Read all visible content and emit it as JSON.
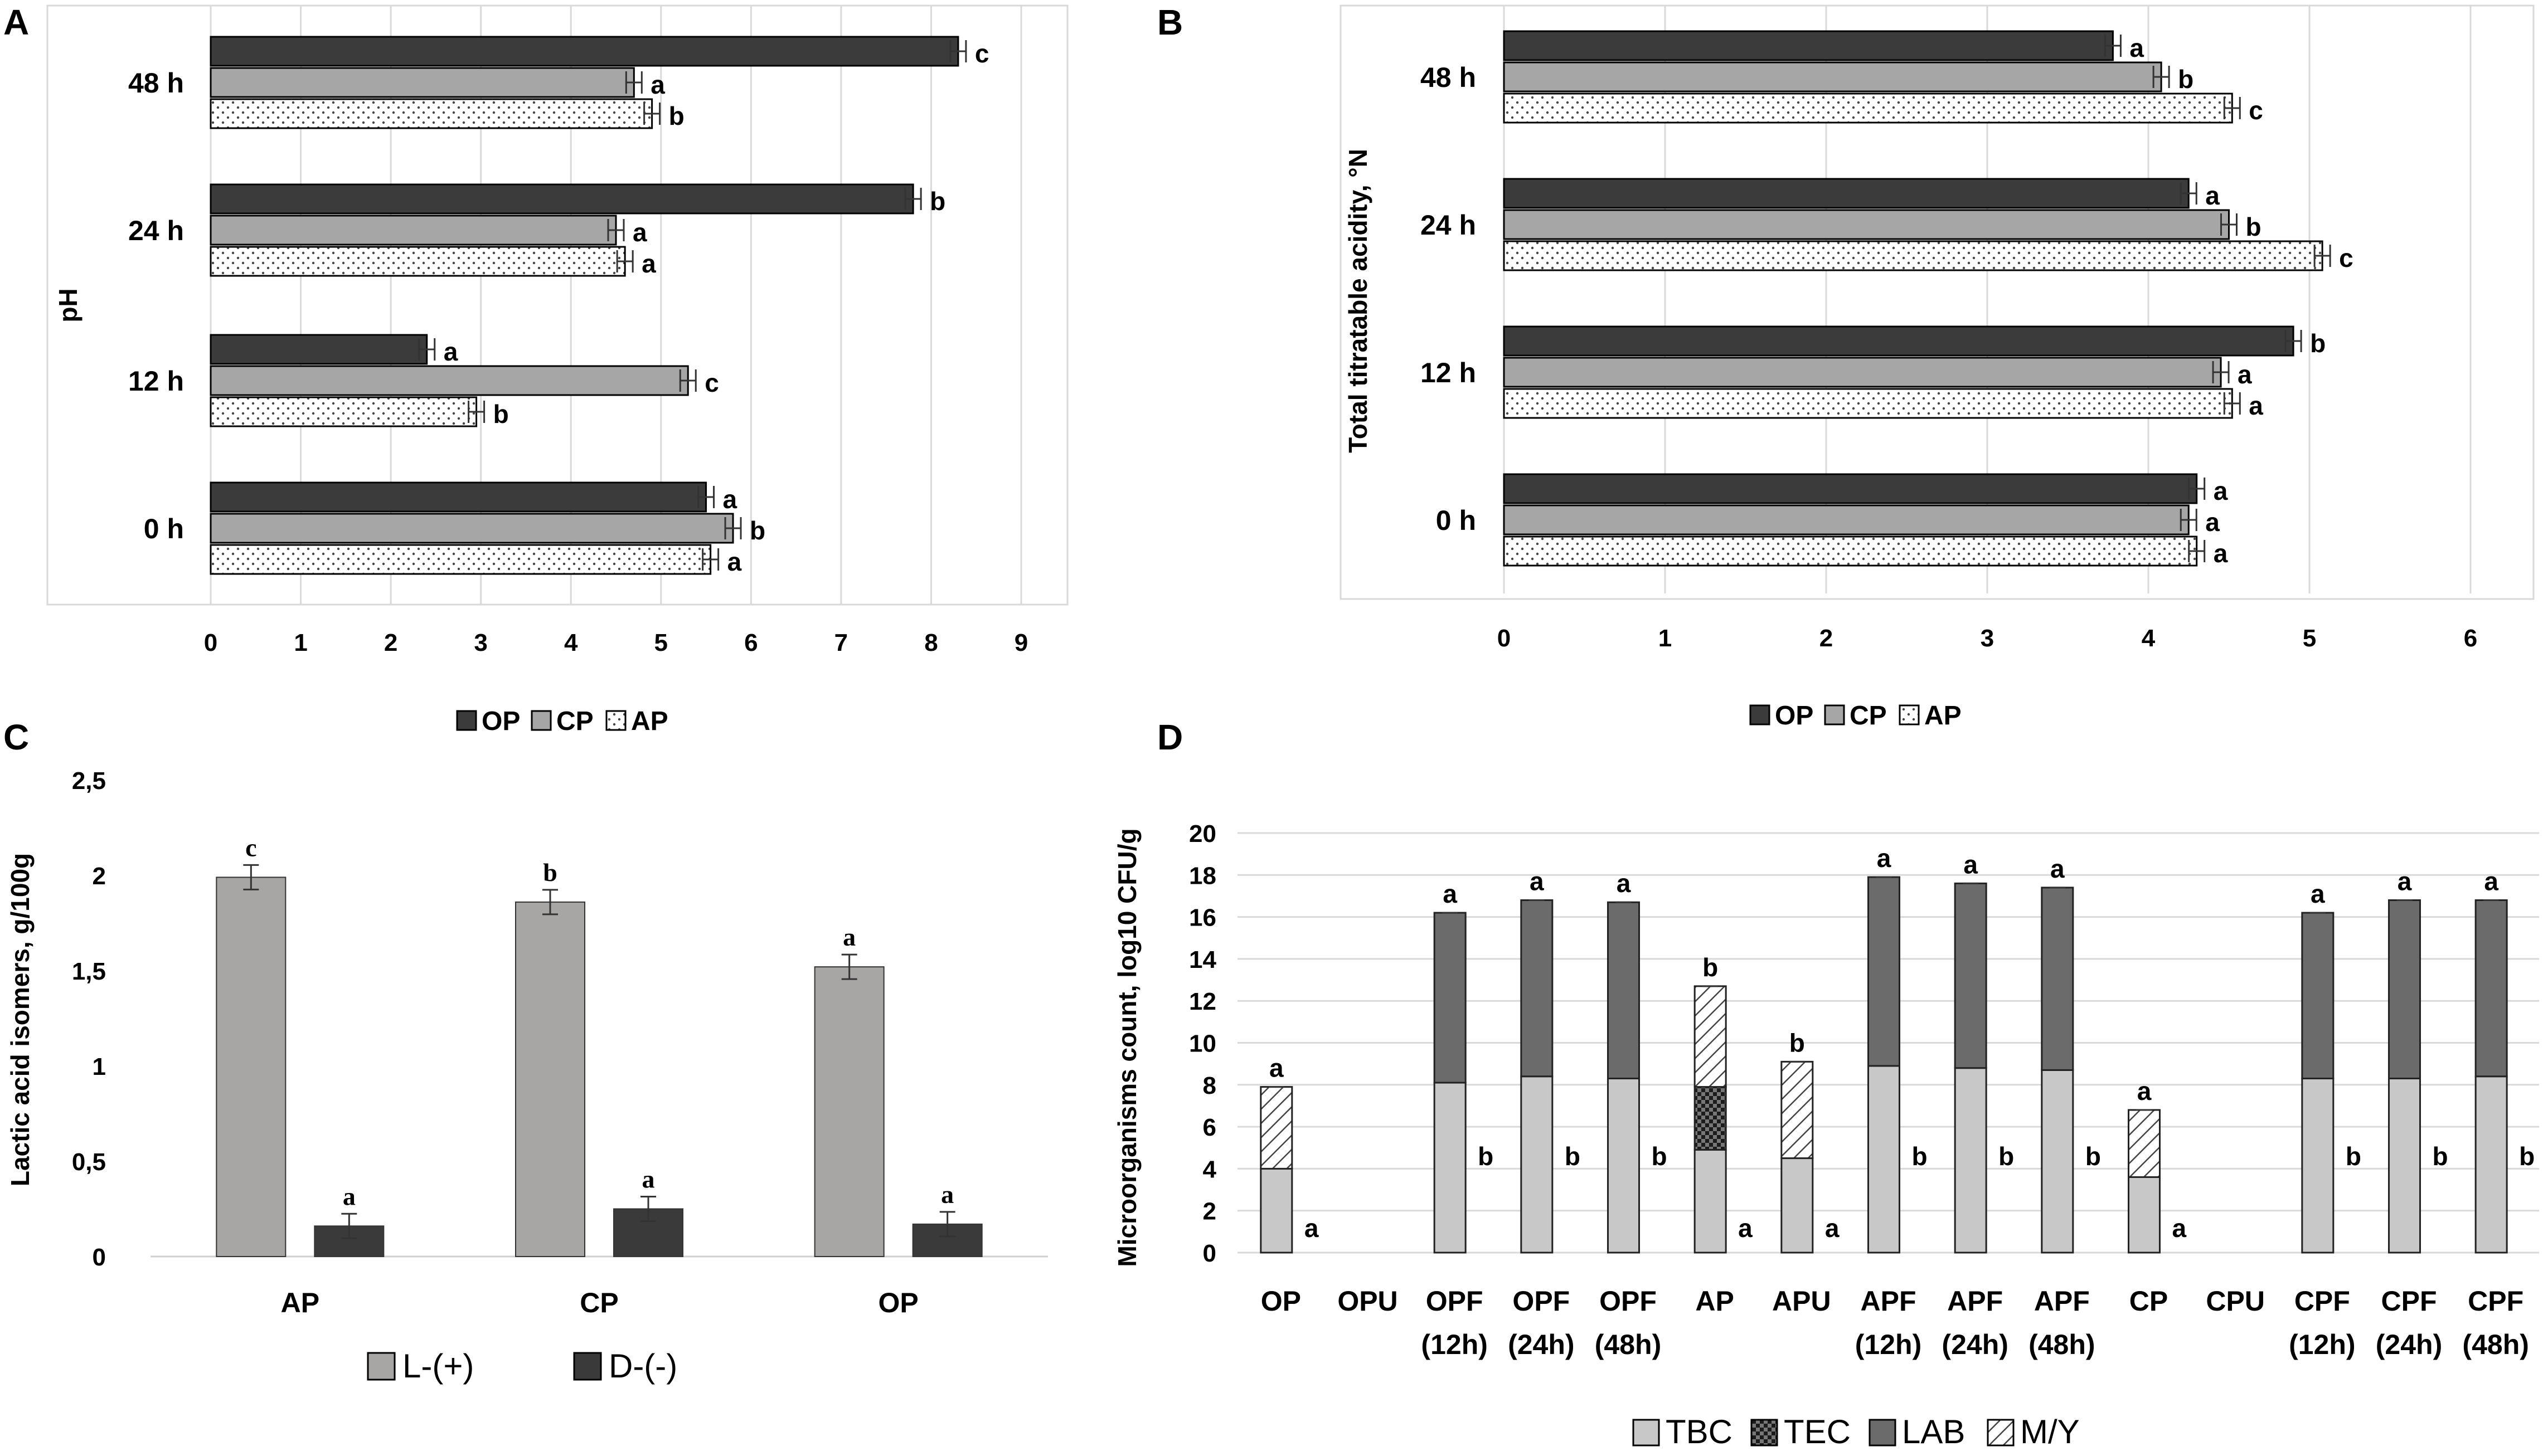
{
  "colors": {
    "op": "#3b3b3b",
    "cp": "#a6a6a6",
    "ap": "#ffffff",
    "l_plus": "#a8a5a5",
    "d_minus": "#3a3a3a",
    "tbc": "#c8c8c8",
    "tec": "#1c1c1c",
    "lab": "#6b6b6b",
    "my": "#ffffff"
  },
  "chart_data": [
    {
      "panel": "A",
      "type": "bar",
      "orientation": "horizontal",
      "title": "",
      "ylabel": "pH",
      "xlabel": "",
      "categories": [
        "48 h",
        "24 h",
        "12 h",
        "0 h"
      ],
      "xlim": [
        0,
        9
      ],
      "ticks": [
        "0",
        "1",
        "2",
        "3",
        "4",
        "5",
        "6",
        "7",
        "8",
        "9"
      ],
      "legend_position": "bottom",
      "series": [
        {
          "name": "OP",
          "values": [
            8.3,
            7.8,
            2.4,
            5.5
          ],
          "letters": [
            "c",
            "b",
            "a",
            "a"
          ]
        },
        {
          "name": "CP",
          "values": [
            4.7,
            4.5,
            5.3,
            5.8
          ],
          "letters": [
            "a",
            "a",
            "c",
            "b"
          ]
        },
        {
          "name": "AP",
          "values": [
            4.9,
            4.6,
            2.95,
            5.55
          ],
          "letters": [
            "b",
            "a",
            "b",
            "a"
          ]
        }
      ]
    },
    {
      "panel": "B",
      "type": "bar",
      "orientation": "horizontal",
      "title": "",
      "ylabel": "Total titratable acidity, °N",
      "xlabel": "",
      "categories": [
        "48 h",
        "24 h",
        "12 h",
        "0 h"
      ],
      "xlim": [
        0,
        6
      ],
      "ticks": [
        "0",
        "1",
        "2",
        "3",
        "4",
        "5",
        "6"
      ],
      "legend_position": "bottom",
      "series": [
        {
          "name": "OP",
          "values": [
            3.78,
            4.25,
            4.9,
            4.3
          ],
          "letters": [
            "a",
            "a",
            "b",
            "a"
          ]
        },
        {
          "name": "CP",
          "values": [
            4.08,
            4.5,
            4.45,
            4.25
          ],
          "letters": [
            "b",
            "b",
            "a",
            "a"
          ]
        },
        {
          "name": "AP",
          "values": [
            4.52,
            5.08,
            4.52,
            4.3
          ],
          "letters": [
            "c",
            "c",
            "a",
            "a"
          ]
        }
      ]
    },
    {
      "panel": "C",
      "type": "bar",
      "orientation": "vertical",
      "title": "",
      "ylabel": "Lactic acid isomers, g/100g",
      "xlabel": "",
      "categories": [
        "AP",
        "CP",
        "OP"
      ],
      "ylim": [
        0,
        2.5
      ],
      "ticks": [
        "0",
        "0,5",
        "1",
        "1,5",
        "2",
        "2,5"
      ],
      "legend_position": "bottom",
      "series": [
        {
          "name": "L-(+)",
          "values": [
            1.99,
            1.86,
            1.52
          ],
          "letters": [
            "c",
            "b",
            "a"
          ]
        },
        {
          "name": "D-(-)",
          "values": [
            0.16,
            0.25,
            0.17
          ],
          "letters": [
            "a",
            "a",
            "a"
          ]
        }
      ]
    },
    {
      "panel": "D",
      "type": "bar",
      "orientation": "vertical",
      "stacked": true,
      "title": "",
      "ylabel": "Microorganisms count, log10 CFU/g",
      "xlabel": "",
      "categories": [
        {
          "line1": "OP",
          "line2": ""
        },
        {
          "line1": "OPU",
          "line2": ""
        },
        {
          "line1": "OPF",
          "line2": "(12h)"
        },
        {
          "line1": "OPF",
          "line2": "(24h)"
        },
        {
          "line1": "OPF",
          "line2": "(48h)"
        },
        {
          "line1": "AP",
          "line2": ""
        },
        {
          "line1": "APU",
          "line2": ""
        },
        {
          "line1": "APF",
          "line2": "(12h)"
        },
        {
          "line1": "APF",
          "line2": "(24h)"
        },
        {
          "line1": "APF",
          "line2": "(48h)"
        },
        {
          "line1": "CP",
          "line2": ""
        },
        {
          "line1": "CPU",
          "line2": ""
        },
        {
          "line1": "CPF",
          "line2": "(12h)"
        },
        {
          "line1": "CPF",
          "line2": "(24h)"
        },
        {
          "line1": "CPF",
          "line2": "(48h)"
        }
      ],
      "ylim": [
        0,
        20
      ],
      "ticks": [
        "0",
        "2",
        "4",
        "6",
        "8",
        "10",
        "12",
        "14",
        "16",
        "18",
        "20"
      ],
      "legend_position": "bottom",
      "series": [
        {
          "name": "TBC",
          "values": [
            4.0,
            0,
            8.1,
            8.4,
            8.3,
            4.9,
            4.5,
            8.9,
            8.8,
            8.7,
            3.6,
            0,
            8.3,
            8.3,
            8.4
          ]
        },
        {
          "name": "TEC",
          "values": [
            0,
            0,
            0,
            0,
            0,
            3.0,
            0,
            0,
            0,
            0,
            0,
            0,
            0,
            0,
            0
          ]
        },
        {
          "name": "LAB",
          "values": [
            0,
            0,
            8.1,
            8.4,
            8.4,
            0,
            0,
            9.0,
            8.8,
            8.7,
            0,
            0,
            7.9,
            8.5,
            8.4
          ]
        },
        {
          "name": "M/Y",
          "values": [
            3.9,
            0,
            0,
            0,
            0,
            4.8,
            4.6,
            0,
            0,
            0,
            3.2,
            0,
            0,
            0,
            0
          ]
        }
      ],
      "top_letters": [
        "a",
        "",
        "a",
        "a",
        "a",
        "b",
        "b",
        "a",
        "a",
        "a",
        "a",
        "",
        "a",
        "a",
        "a"
      ],
      "side_letters": [
        "a",
        "",
        "b",
        "b",
        "b",
        "a",
        "a",
        "b",
        "b",
        "b",
        "a",
        "",
        "b",
        "b",
        "b"
      ]
    }
  ]
}
